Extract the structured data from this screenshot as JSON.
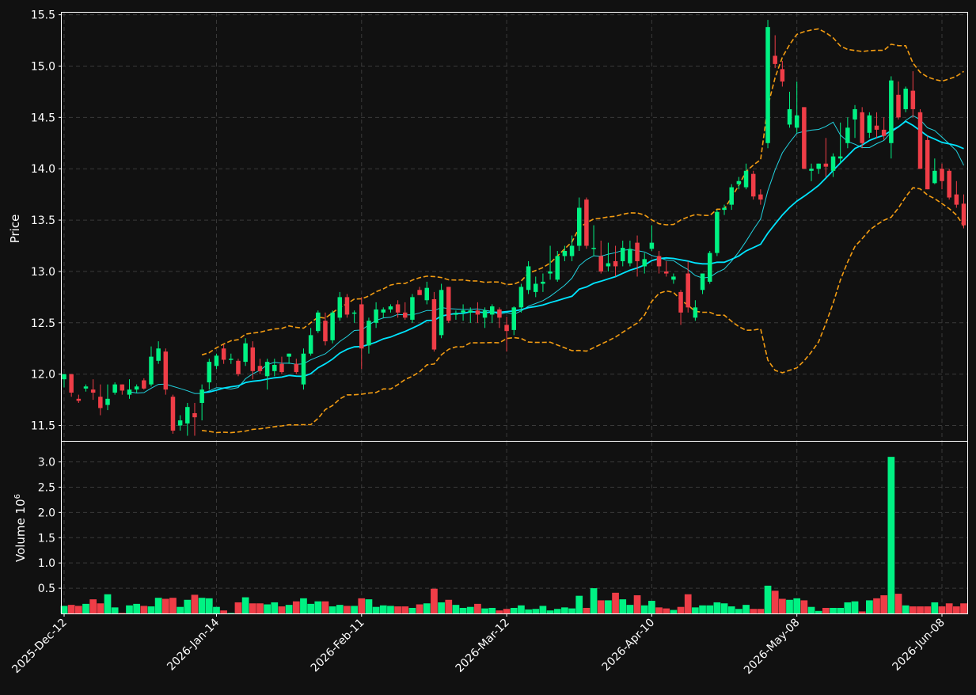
{
  "colors": {
    "background": "#111111",
    "up": "#00f283",
    "down": "#ef3d47",
    "ma_fast": "#22d3e0",
    "ma_slow": "#00e5ff",
    "bands": "#f39c12",
    "grid": "#3a3a3a",
    "frame": "#ffffff"
  },
  "chart_data": {
    "type": "candlestick",
    "ylabel_price": "Price",
    "ylabel_volume": "Volume",
    "volume_multiplier": "10",
    "volume_exponent": "6",
    "price_ylim": [
      11.35,
      15.52
    ],
    "price_yticks": [
      "11.5",
      "12.0",
      "12.5",
      "13.0",
      "13.5",
      "14.0",
      "14.5",
      "15.0",
      "15.5"
    ],
    "volume_ylim": [
      0,
      3.4
    ],
    "volume_yticks": [
      "0.5",
      "1.0",
      "1.5",
      "2.0",
      "2.5",
      "3.0"
    ],
    "xtick_labels": [
      {
        "label": "2025-Dec-12",
        "index": 0
      },
      {
        "label": "2026-Jan-14",
        "index": 21
      },
      {
        "label": "2026-Feb-11",
        "index": 41
      },
      {
        "label": "2026-Mar-12",
        "index": 61
      },
      {
        "label": "2026-Apr-10",
        "index": 81
      },
      {
        "label": "2026-May-08",
        "index": 101
      },
      {
        "label": "2026-Jun-08",
        "index": 121
      }
    ],
    "ohlc": [
      [
        11.95,
        12.0,
        11.87,
        12.0
      ],
      [
        12.0,
        12.0,
        11.78,
        11.82
      ],
      [
        11.76,
        11.8,
        11.72,
        11.74
      ],
      [
        11.86,
        11.9,
        11.83,
        11.88
      ],
      [
        11.85,
        11.95,
        11.75,
        11.82
      ],
      [
        11.78,
        11.9,
        11.6,
        11.67
      ],
      [
        11.7,
        11.9,
        11.65,
        11.76
      ],
      [
        11.82,
        11.92,
        11.8,
        11.9
      ],
      [
        11.9,
        11.9,
        11.8,
        11.84
      ],
      [
        11.8,
        11.95,
        11.76,
        11.85
      ],
      [
        11.85,
        11.9,
        11.82,
        11.88
      ],
      [
        11.94,
        11.96,
        11.85,
        11.86
      ],
      [
        11.9,
        12.27,
        11.88,
        12.17
      ],
      [
        12.13,
        12.32,
        12.1,
        12.25
      ],
      [
        12.22,
        12.25,
        11.8,
        11.85
      ],
      [
        11.78,
        11.8,
        11.42,
        11.45
      ],
      [
        11.5,
        11.6,
        11.45,
        11.55
      ],
      [
        11.52,
        11.72,
        11.4,
        11.68
      ],
      [
        11.62,
        11.72,
        11.4,
        11.58
      ],
      [
        11.72,
        11.9,
        11.55,
        11.85
      ],
      [
        11.92,
        12.15,
        11.85,
        12.12
      ],
      [
        12.08,
        12.2,
        12.05,
        12.18
      ],
      [
        12.25,
        12.29,
        12.1,
        12.14
      ],
      [
        12.15,
        12.2,
        12.1,
        12.15
      ],
      [
        12.13,
        12.15,
        11.98,
        12.0
      ],
      [
        12.12,
        12.35,
        12.08,
        12.3
      ],
      [
        12.26,
        12.32,
        11.95,
        12.03
      ],
      [
        12.08,
        12.15,
        12.0,
        12.03
      ],
      [
        11.98,
        12.15,
        11.85,
        12.12
      ],
      [
        12.03,
        12.15,
        11.98,
        12.09
      ],
      [
        12.1,
        12.17,
        12.0,
        12.02
      ],
      [
        12.17,
        12.2,
        12.1,
        12.2
      ],
      [
        12.1,
        12.15,
        12.0,
        12.02
      ],
      [
        11.9,
        12.25,
        11.85,
        12.2
      ],
      [
        12.2,
        12.45,
        12.18,
        12.38
      ],
      [
        12.42,
        12.62,
        12.4,
        12.6
      ],
      [
        12.52,
        12.6,
        12.28,
        12.32
      ],
      [
        12.33,
        12.62,
        12.3,
        12.6
      ],
      [
        12.55,
        12.8,
        12.52,
        12.75
      ],
      [
        12.75,
        12.78,
        12.55,
        12.58
      ],
      [
        12.6,
        12.62,
        12.5,
        12.6
      ],
      [
        12.68,
        12.75,
        12.05,
        12.25
      ],
      [
        12.28,
        12.55,
        12.2,
        12.52
      ],
      [
        12.5,
        12.7,
        12.45,
        12.63
      ],
      [
        12.6,
        12.65,
        12.55,
        12.63
      ],
      [
        12.63,
        12.68,
        12.6,
        12.66
      ],
      [
        12.68,
        12.72,
        12.55,
        12.6
      ],
      [
        12.6,
        12.7,
        12.53,
        12.55
      ],
      [
        12.53,
        12.78,
        12.5,
        12.75
      ],
      [
        12.82,
        12.85,
        12.78,
        12.77
      ],
      [
        12.72,
        12.9,
        12.68,
        12.84
      ],
      [
        12.73,
        12.8,
        12.22,
        12.24
      ],
      [
        12.38,
        12.88,
        12.35,
        12.82
      ],
      [
        12.85,
        12.85,
        12.5,
        12.52
      ],
      [
        12.58,
        12.62,
        12.53,
        12.59
      ],
      [
        12.6,
        12.68,
        12.52,
        12.62
      ],
      [
        12.6,
        12.65,
        12.5,
        12.62
      ],
      [
        12.62,
        12.7,
        12.5,
        12.58
      ],
      [
        12.55,
        12.65,
        12.45,
        12.62
      ],
      [
        12.58,
        12.68,
        12.5,
        12.66
      ],
      [
        12.63,
        12.65,
        12.45,
        12.55
      ],
      [
        12.48,
        12.56,
        12.22,
        12.42
      ],
      [
        12.43,
        12.66,
        12.38,
        12.65
      ],
      [
        12.65,
        12.88,
        12.6,
        12.85
      ],
      [
        12.82,
        13.1,
        12.78,
        13.05
      ],
      [
        12.8,
        12.95,
        12.75,
        12.88
      ],
      [
        12.88,
        12.98,
        12.8,
        12.9
      ],
      [
        12.98,
        13.25,
        12.92,
        13.0
      ],
      [
        12.92,
        13.2,
        12.9,
        13.15
      ],
      [
        13.15,
        13.25,
        13.1,
        13.2
      ],
      [
        13.15,
        13.35,
        13.1,
        13.25
      ],
      [
        13.25,
        13.72,
        13.2,
        13.62
      ],
      [
        13.7,
        13.72,
        13.22,
        13.25
      ],
      [
        13.23,
        13.45,
        13.15,
        13.23
      ],
      [
        13.15,
        13.3,
        12.98,
        13.0
      ],
      [
        13.05,
        13.28,
        13.0,
        13.08
      ],
      [
        13.1,
        13.25,
        12.95,
        13.05
      ],
      [
        13.1,
        13.3,
        13.05,
        13.23
      ],
      [
        13.08,
        13.3,
        13.05,
        13.22
      ],
      [
        13.28,
        13.35,
        12.95,
        13.1
      ],
      [
        13.05,
        13.18,
        12.98,
        13.12
      ],
      [
        13.22,
        13.45,
        13.2,
        13.28
      ],
      [
        13.15,
        13.2,
        12.98,
        13.05
      ],
      [
        13.0,
        13.1,
        12.95,
        12.98
      ],
      [
        12.92,
        12.98,
        12.88,
        12.95
      ],
      [
        12.8,
        12.82,
        12.48,
        12.6
      ],
      [
        12.98,
        13.1,
        12.6,
        12.65
      ],
      [
        12.55,
        12.72,
        12.52,
        12.65
      ],
      [
        12.82,
        12.98,
        12.78,
        12.98
      ],
      [
        12.9,
        13.2,
        12.88,
        13.18
      ],
      [
        13.18,
        13.6,
        13.15,
        13.58
      ],
      [
        13.6,
        13.65,
        13.55,
        13.62
      ],
      [
        13.65,
        13.85,
        13.6,
        13.82
      ],
      [
        13.85,
        13.92,
        13.8,
        13.88
      ],
      [
        13.82,
        14.05,
        13.8,
        13.98
      ],
      [
        13.95,
        13.98,
        13.7,
        13.73
      ],
      [
        13.75,
        13.8,
        13.65,
        13.7
      ],
      [
        14.25,
        15.45,
        14.2,
        15.38
      ],
      [
        15.1,
        15.3,
        14.98,
        15.02
      ],
      [
        14.97,
        15.05,
        14.8,
        14.85
      ],
      [
        14.43,
        14.75,
        14.4,
        14.58
      ],
      [
        14.4,
        14.85,
        14.35,
        14.52
      ],
      [
        14.6,
        14.6,
        14.0,
        14.0
      ],
      [
        13.98,
        14.05,
        13.88,
        14.0
      ],
      [
        14.0,
        14.05,
        13.95,
        14.05
      ],
      [
        14.05,
        14.3,
        13.92,
        14.02
      ],
      [
        13.98,
        14.15,
        13.92,
        14.12
      ],
      [
        14.1,
        14.45,
        14.05,
        14.12
      ],
      [
        14.25,
        14.5,
        14.2,
        14.4
      ],
      [
        14.48,
        14.62,
        14.3,
        14.58
      ],
      [
        14.55,
        14.6,
        14.2,
        14.25
      ],
      [
        14.35,
        14.55,
        14.3,
        14.52
      ],
      [
        14.42,
        14.55,
        14.3,
        14.38
      ],
      [
        14.38,
        14.5,
        14.28,
        14.32
      ],
      [
        14.25,
        14.9,
        14.1,
        14.86
      ],
      [
        14.72,
        14.85,
        14.48,
        14.5
      ],
      [
        14.58,
        14.8,
        14.55,
        14.78
      ],
      [
        14.76,
        14.95,
        14.5,
        14.58
      ],
      [
        14.55,
        14.58,
        14.0,
        14.0
      ],
      [
        14.28,
        14.32,
        13.8,
        13.8
      ],
      [
        13.86,
        14.1,
        13.85,
        13.98
      ],
      [
        14.0,
        14.05,
        13.8,
        13.88
      ],
      [
        13.98,
        14.0,
        13.7,
        13.72
      ],
      [
        13.75,
        13.88,
        13.62,
        13.65
      ],
      [
        13.66,
        13.75,
        13.42,
        13.45
      ]
    ],
    "volume": [
      0.15,
      0.17,
      0.15,
      0.19,
      0.28,
      0.2,
      0.38,
      0.12,
      0.01,
      0.16,
      0.19,
      0.15,
      0.14,
      0.31,
      0.29,
      0.31,
      0.13,
      0.27,
      0.37,
      0.31,
      0.3,
      0.13,
      0.06,
      0.01,
      0.22,
      0.32,
      0.2,
      0.2,
      0.18,
      0.22,
      0.14,
      0.17,
      0.24,
      0.3,
      0.19,
      0.24,
      0.24,
      0.14,
      0.17,
      0.15,
      0.15,
      0.3,
      0.28,
      0.13,
      0.16,
      0.15,
      0.14,
      0.14,
      0.11,
      0.18,
      0.2,
      0.49,
      0.22,
      0.27,
      0.17,
      0.11,
      0.13,
      0.19,
      0.1,
      0.11,
      0.06,
      0.09,
      0.11,
      0.16,
      0.08,
      0.09,
      0.15,
      0.06,
      0.09,
      0.12,
      0.1,
      0.35,
      0.11,
      0.5,
      0.26,
      0.26,
      0.41,
      0.28,
      0.17,
      0.36,
      0.16,
      0.25,
      0.12,
      0.1,
      0.07,
      0.13,
      0.38,
      0.12,
      0.16,
      0.16,
      0.22,
      0.2,
      0.14,
      0.09,
      0.17,
      0.09,
      0.09,
      0.55,
      0.45,
      0.29,
      0.27,
      0.3,
      0.26,
      0.13,
      0.05,
      0.11,
      0.11,
      0.11,
      0.22,
      0.24,
      0.04,
      0.26,
      0.3,
      0.36,
      3.1,
      0.39,
      0.16,
      0.14,
      0.14,
      0.14,
      0.22,
      0.14,
      0.2,
      0.14,
      0.2
    ],
    "ma_fast_window": 10,
    "ma_slow_window": 20,
    "band_window": 20,
    "band_width_sd": 2
  }
}
